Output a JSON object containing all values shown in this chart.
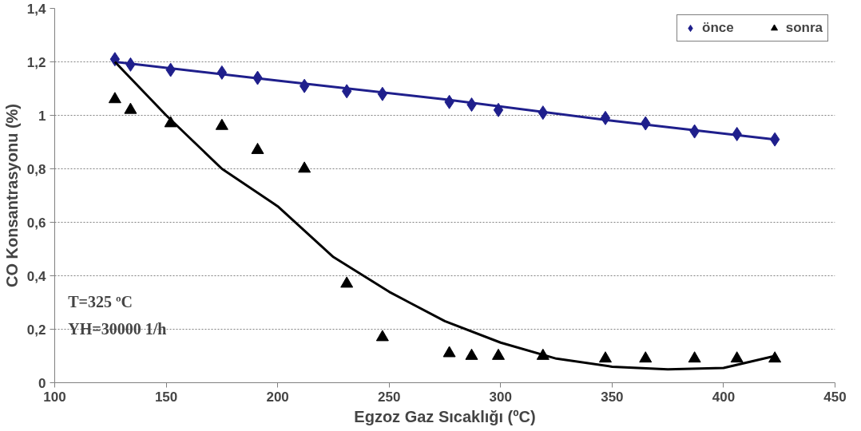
{
  "chart_data": {
    "type": "scatter",
    "xlabel": "Egzoz Gaz Sıcaklığı (ºC)",
    "ylabel": "CO Konsantrasyonu (%)",
    "xlim": [
      100,
      450
    ],
    "xticks": [
      100,
      150,
      200,
      250,
      300,
      350,
      400,
      450
    ],
    "ylim": [
      0,
      1.4
    ],
    "yticks": [
      0,
      {
        "value": 0.2,
        "label": "0,2"
      },
      {
        "value": 0.4,
        "label": "0,4"
      },
      {
        "value": 0.6,
        "label": "0,6"
      },
      {
        "value": 0.8,
        "label": "0,8"
      },
      1,
      {
        "value": 1.2,
        "label": "1,2"
      },
      {
        "value": 1.4,
        "label": "1,4"
      }
    ],
    "grid": "y",
    "legend": "top right",
    "annotations": [
      "T=325 ºC",
      "YH=30000 1/h"
    ],
    "series": [
      {
        "name": "önce",
        "marker": "diamond",
        "color": "#1f1f8c",
        "x": [
          127,
          134,
          152,
          175,
          191,
          212,
          231,
          247,
          277,
          287,
          299,
          319,
          347,
          365,
          387,
          406,
          423
        ],
        "values": [
          1.21,
          1.19,
          1.17,
          1.16,
          1.14,
          1.11,
          1.09,
          1.08,
          1.05,
          1.04,
          1.02,
          1.01,
          0.99,
          0.97,
          0.94,
          0.93,
          0.91
        ]
      },
      {
        "name": "sonra",
        "marker": "triangle",
        "color": "#000000",
        "x": [
          127,
          134,
          152,
          175,
          191,
          212,
          231,
          247,
          277,
          287,
          299,
          319,
          347,
          365,
          387,
          406,
          423
        ],
        "values": [
          1.06,
          1.02,
          0.97,
          0.96,
          0.87,
          0.8,
          0.37,
          0.17,
          0.11,
          0.1,
          0.1,
          0.1,
          0.09,
          0.09,
          0.09,
          0.09,
          0.09
        ]
      },
      {
        "type": "line",
        "marker": "none",
        "color": "#1f1f8c",
        "x": [
          127,
          200,
          275,
          350,
          423
        ],
        "values": [
          1.2,
          1.13,
          1.06,
          0.98,
          0.91
        ]
      },
      {
        "type": "line",
        "marker": "none",
        "color": "#000000",
        "x": [
          127,
          150,
          175,
          200,
          225,
          250,
          275,
          300,
          325,
          350,
          375,
          400,
          423
        ],
        "values": [
          1.2,
          1.0,
          0.8,
          0.66,
          0.47,
          0.34,
          0.23,
          0.15,
          0.09,
          0.06,
          0.05,
          0.055,
          0.1
        ]
      }
    ]
  }
}
